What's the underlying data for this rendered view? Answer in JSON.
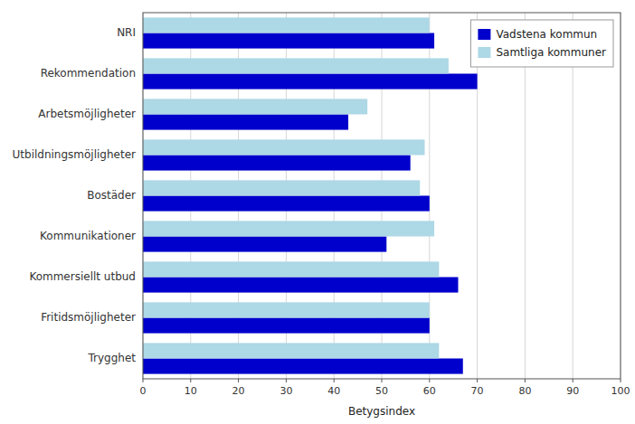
{
  "chart_data": {
    "type": "bar",
    "orientation": "horizontal",
    "categories": [
      "NRI",
      "Rekommendation",
      "Arbetsmöjligheter",
      "Utbildningsmöjligheter",
      "Bostäder",
      "Kommunikationer",
      "Kommersiellt utbud",
      "Fritidsmöjligheter",
      "Trygghet"
    ],
    "series": [
      {
        "name": "Vadstena kommun",
        "color": "#0000CC",
        "values": [
          61,
          70,
          43,
          56,
          60,
          51,
          66,
          60,
          67
        ]
      },
      {
        "name": "Samtliga kommuner",
        "color": "#ADD8E6",
        "values": [
          60,
          64,
          47,
          59,
          58,
          61,
          62,
          60,
          62
        ]
      }
    ],
    "xlabel": "Betygsindex",
    "xlim": [
      0,
      100
    ],
    "xticks": [
      0,
      10,
      20,
      30,
      40,
      50,
      60,
      70,
      80,
      90,
      100
    ],
    "grid": true,
    "legend": "upper right"
  }
}
